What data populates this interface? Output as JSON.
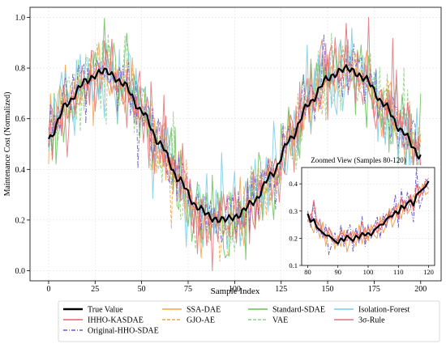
{
  "chart_data": {
    "type": "line",
    "main": {
      "xlabel": "Sample Index",
      "ylabel": "Maintenance Cost (Normalized)",
      "xlim": [
        -10,
        211
      ],
      "ylim": [
        -0.04,
        1.04
      ],
      "xticks": [
        0,
        25,
        50,
        75,
        100,
        125,
        150,
        175,
        200
      ],
      "yticks": [
        0.0,
        0.2,
        0.4,
        0.6,
        0.8,
        1.0
      ],
      "grid": true
    },
    "inset": {
      "title": "Zoomed View (Samples 80-120)",
      "xlim": [
        78,
        122
      ],
      "ylim": [
        0.1,
        0.46
      ],
      "xticks": [
        80,
        90,
        100,
        110,
        120
      ],
      "yticks": [
        0.1,
        0.2,
        0.3,
        0.4
      ],
      "grid": true
    },
    "legend": {
      "placement": "bottom-center",
      "columns": 4
    },
    "series": [
      {
        "key": "true",
        "name": "True Value",
        "color": "#000000",
        "style": "solid",
        "width": 2.2,
        "noise": 0.0,
        "seed": 1,
        "order": 9,
        "outlier": 0
      },
      {
        "key": "ihho",
        "name": "IHHO-KASDAE",
        "color": "#e8636a",
        "style": "solid",
        "width": 1.0,
        "noise": 0.045,
        "seed": 2,
        "order": 8,
        "outlier": 0.0
      },
      {
        "key": "orig",
        "name": "Original-HHO-SDAE",
        "color": "#6a5acd",
        "style": "dashdot",
        "width": 1.0,
        "noise": 0.06,
        "seed": 3,
        "order": 7,
        "outlier": 0.0
      },
      {
        "key": "ssa",
        "name": "SSA-DAE",
        "color": "#f5a34a",
        "style": "solid",
        "width": 1.0,
        "noise": 0.06,
        "seed": 4,
        "order": 3,
        "outlier": 0.0
      },
      {
        "key": "gjo",
        "name": "GJO-AE",
        "color": "#f5a34a",
        "style": "dashed",
        "width": 1.0,
        "noise": 0.06,
        "seed": 5,
        "order": 2,
        "outlier": 0.0
      },
      {
        "key": "std",
        "name": "Standard-SDAE",
        "color": "#6bbf59",
        "style": "solid",
        "width": 1.0,
        "noise": 0.08,
        "seed": 6,
        "order": 4,
        "outlier": 0.0
      },
      {
        "key": "vae",
        "name": "VAE",
        "color": "#8fd48a",
        "style": "dashed",
        "width": 1.0,
        "noise": 0.08,
        "seed": 7,
        "order": 1,
        "outlier": 0.0
      },
      {
        "key": "iso",
        "name": "Isolation-Forest",
        "color": "#78cde6",
        "style": "solid",
        "width": 1.0,
        "noise": 0.09,
        "seed": 8,
        "order": 5,
        "outlier": 0.0
      },
      {
        "key": "sig",
        "name": "3σ-Rule",
        "color": "#e0747a",
        "style": "solid",
        "width": 1.0,
        "noise": 0.09,
        "seed": 9,
        "order": 6,
        "outlier": 0.0
      }
    ],
    "true_curve": {
      "x": [
        0,
        10,
        20,
        30,
        40,
        50,
        60,
        70,
        80,
        90,
        100,
        110,
        120,
        130,
        140,
        150,
        160,
        170,
        180,
        190,
        200
      ],
      "y": [
        0.52,
        0.66,
        0.75,
        0.79,
        0.74,
        0.63,
        0.5,
        0.36,
        0.25,
        0.2,
        0.21,
        0.27,
        0.38,
        0.52,
        0.66,
        0.76,
        0.8,
        0.76,
        0.66,
        0.55,
        0.45
      ]
    },
    "inset_series": [
      {
        "key": "true",
        "x": [
          80,
          81,
          82,
          83,
          84,
          85,
          86,
          87,
          88,
          89,
          90,
          91,
          92,
          93,
          94,
          95,
          96,
          97,
          98,
          99,
          100,
          101,
          102,
          103,
          104,
          105,
          106,
          107,
          108,
          109,
          110,
          111,
          112,
          113,
          114,
          115,
          116,
          117,
          118,
          119,
          120
        ],
        "y": [
          0.29,
          0.26,
          0.27,
          0.24,
          0.23,
          0.22,
          0.21,
          0.21,
          0.2,
          0.19,
          0.18,
          0.2,
          0.19,
          0.21,
          0.2,
          0.19,
          0.21,
          0.2,
          0.22,
          0.21,
          0.22,
          0.21,
          0.23,
          0.24,
          0.25,
          0.25,
          0.27,
          0.28,
          0.28,
          0.3,
          0.29,
          0.32,
          0.31,
          0.33,
          0.34,
          0.32,
          0.36,
          0.37,
          0.38,
          0.39,
          0.41
        ]
      },
      {
        "key": "ihho",
        "x": [
          80,
          81,
          82,
          83,
          84,
          85,
          86,
          87,
          88,
          89,
          90,
          91,
          92,
          93,
          94,
          95,
          96,
          97,
          98,
          99,
          100,
          101,
          102,
          103,
          104,
          105,
          106,
          107,
          108,
          109,
          110,
          111,
          112,
          113,
          114,
          115,
          116,
          117,
          118,
          119,
          120
        ],
        "y": [
          0.28,
          0.26,
          0.34,
          0.26,
          0.25,
          0.21,
          0.23,
          0.22,
          0.19,
          0.2,
          0.19,
          0.23,
          0.21,
          0.19,
          0.22,
          0.18,
          0.22,
          0.21,
          0.26,
          0.19,
          0.24,
          0.21,
          0.22,
          0.26,
          0.23,
          0.26,
          0.29,
          0.27,
          0.31,
          0.3,
          0.27,
          0.35,
          0.3,
          0.33,
          0.36,
          0.3,
          0.4,
          0.35,
          0.38,
          0.41,
          0.42
        ]
      },
      {
        "key": "orig",
        "x": [
          80,
          81,
          82,
          83,
          84,
          85,
          86,
          87,
          88,
          89,
          90,
          91,
          92,
          93,
          94,
          95,
          96,
          97,
          98,
          99,
          100,
          101,
          102,
          103,
          104,
          105,
          106,
          107,
          108,
          109,
          110,
          111,
          112,
          113,
          114,
          115,
          116,
          117,
          118,
          119,
          120
        ],
        "y": [
          0.3,
          0.24,
          0.33,
          0.22,
          0.24,
          0.2,
          0.25,
          0.14,
          0.18,
          0.22,
          0.17,
          0.25,
          0.17,
          0.22,
          0.25,
          0.15,
          0.24,
          0.18,
          0.28,
          0.17,
          0.25,
          0.2,
          0.24,
          0.28,
          0.2,
          0.29,
          0.24,
          0.3,
          0.28,
          0.36,
          0.24,
          0.38,
          0.29,
          0.37,
          0.32,
          0.26,
          0.46,
          0.31,
          0.35,
          0.42,
          0.4
        ]
      },
      {
        "key": "ssa",
        "x": [
          80,
          81,
          82,
          83,
          84,
          85,
          86,
          87,
          88,
          89,
          90,
          91,
          92,
          93,
          94,
          95,
          96,
          97,
          98,
          99,
          100,
          101,
          102,
          103,
          104,
          105,
          106,
          107,
          108,
          109,
          110,
          111,
          112,
          113,
          114,
          115,
          116,
          117,
          118,
          119,
          120
        ],
        "y": [
          0.27,
          0.25,
          0.22,
          0.27,
          0.2,
          0.26,
          0.17,
          0.24,
          0.22,
          0.16,
          0.21,
          0.17,
          0.23,
          0.15,
          0.19,
          0.23,
          0.17,
          0.25,
          0.18,
          0.23,
          0.19,
          0.25,
          0.21,
          0.2,
          0.28,
          0.22,
          0.25,
          0.31,
          0.24,
          0.27,
          0.33,
          0.27,
          0.34,
          0.29,
          0.31,
          0.36,
          0.33,
          0.35,
          0.4,
          0.36,
          0.37
        ]
      },
      {
        "key": "sig",
        "x": [
          80,
          81,
          82,
          83,
          84,
          85,
          86,
          87,
          88,
          89,
          90,
          91,
          92,
          93,
          94,
          95,
          96,
          97,
          98,
          99,
          100,
          101,
          102,
          103,
          104,
          105,
          106,
          107,
          108,
          109,
          110,
          111,
          112,
          113,
          114,
          115,
          116,
          117,
          118,
          119,
          120
        ],
        "y": [
          0.26,
          0.29,
          0.27,
          0.23,
          0.27,
          0.22,
          0.2,
          0.24,
          0.21,
          0.18,
          0.2,
          0.22,
          0.18,
          0.23,
          0.19,
          0.21,
          0.23,
          0.19,
          0.21,
          0.24,
          0.2,
          0.23,
          0.25,
          0.22,
          0.26,
          0.27,
          0.24,
          0.29,
          0.27,
          0.32,
          0.28,
          0.31,
          0.34,
          0.3,
          0.35,
          0.33,
          0.35,
          0.39,
          0.36,
          0.4,
          0.38
        ]
      }
    ]
  }
}
